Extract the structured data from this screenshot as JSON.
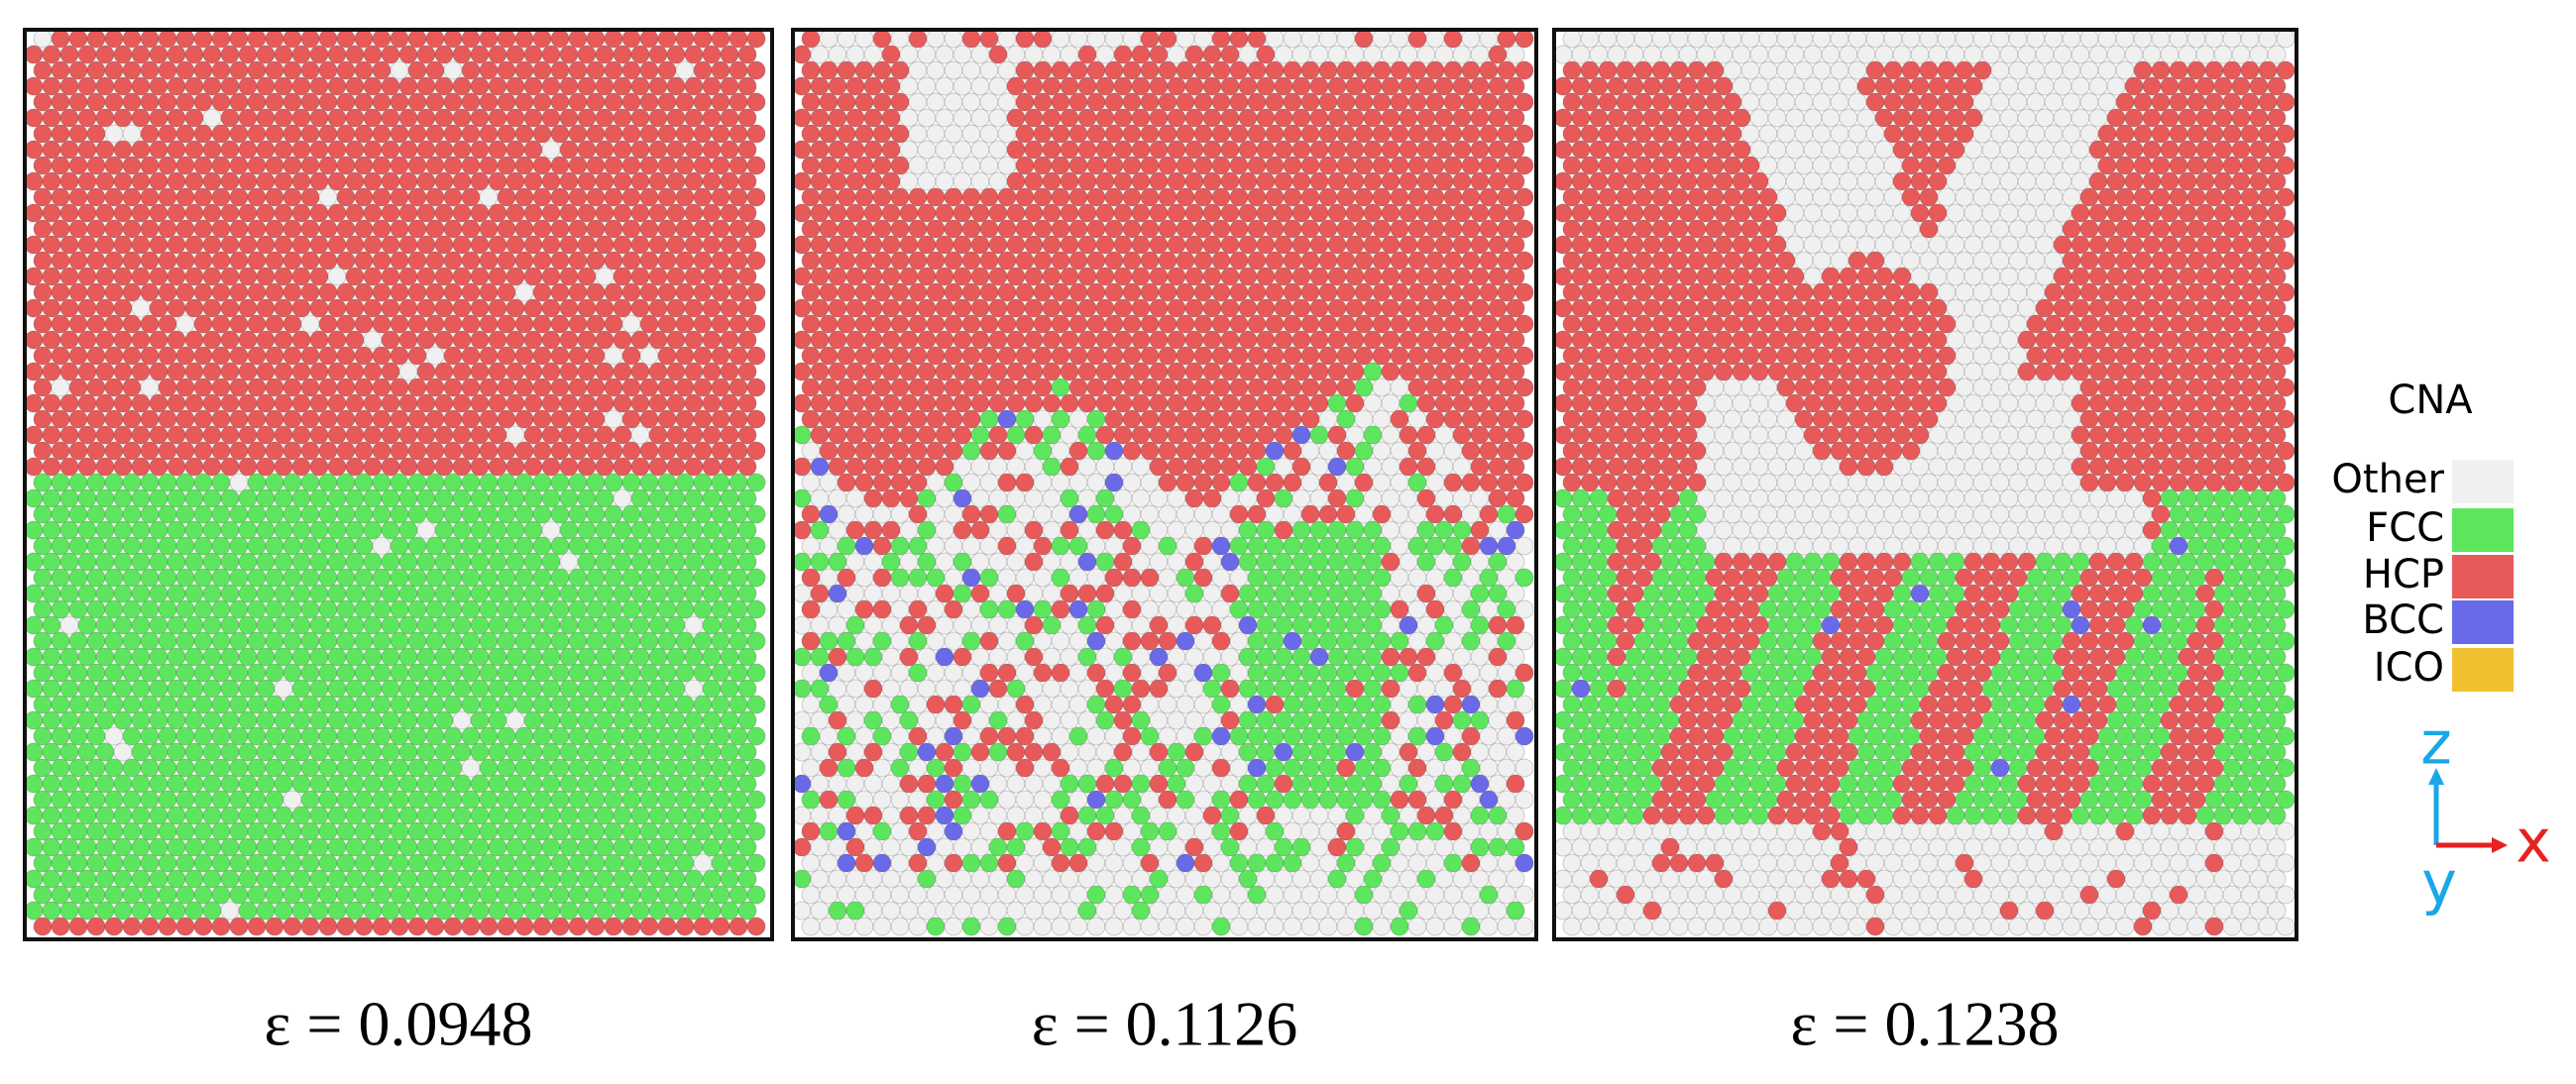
{
  "panels": [
    {
      "label": "ε = 0.0948"
    },
    {
      "label": "ε = 0.1126"
    },
    {
      "label": "ε = 0.1238"
    }
  ],
  "legend": {
    "title": "CNA",
    "items": [
      {
        "name": "Other",
        "color": "#f0f0f0"
      },
      {
        "name": "FCC",
        "color": "#5de65d"
      },
      {
        "name": "HCP",
        "color": "#e85a5a"
      },
      {
        "name": "BCC",
        "color": "#6a6ae8"
      },
      {
        "name": "ICO",
        "color": "#f0c030"
      }
    ]
  },
  "axes": {
    "z": "z",
    "x": "x",
    "y": "y"
  }
}
